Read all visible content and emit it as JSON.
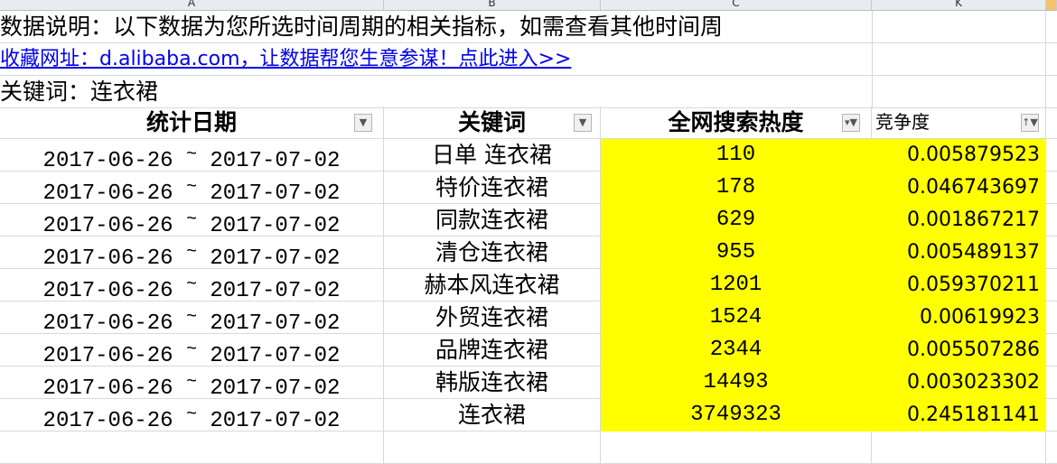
{
  "column_headers": [
    "A",
    "B",
    "C",
    "K"
  ],
  "info_text": "数据说明：以下数据为您所选时间周期的相关指标，如需查看其他时间周",
  "link_text": "收藏网址：d.alibaba.com，让数据帮您生意参谋！点此进入>>",
  "keyword_label": "关键词：连衣裙",
  "table": {
    "headers": [
      "统计日期",
      "关键词",
      "全网搜索热度",
      "竞争度"
    ],
    "header_icons": [
      "dropdown-arrow-icon",
      "dropdown-arrow-icon",
      "filter-active-icon",
      "sort-ascending-filter-icon"
    ],
    "highlight_color": "#ffff00",
    "rows": [
      {
        "start": "2017-06-26",
        "sep": "~",
        "end": "2017-07-02",
        "keyword": "日单 连衣裙",
        "heat": "110",
        "competition": "0.005879523"
      },
      {
        "start": "2017-06-26",
        "sep": "~",
        "end": "2017-07-02",
        "keyword": "特价连衣裙",
        "heat": "178",
        "competition": "0.046743697"
      },
      {
        "start": "2017-06-26",
        "sep": "~",
        "end": "2017-07-02",
        "keyword": "同款连衣裙",
        "heat": "629",
        "competition": "0.001867217"
      },
      {
        "start": "2017-06-26",
        "sep": "~",
        "end": "2017-07-02",
        "keyword": "清仓连衣裙",
        "heat": "955",
        "competition": "0.005489137"
      },
      {
        "start": "2017-06-26",
        "sep": "~",
        "end": "2017-07-02",
        "keyword": "赫本风连衣裙",
        "heat": "1201",
        "competition": "0.059370211"
      },
      {
        "start": "2017-06-26",
        "sep": "~",
        "end": "2017-07-02",
        "keyword": "外贸连衣裙",
        "heat": "1524",
        "competition": "0.00619923"
      },
      {
        "start": "2017-06-26",
        "sep": "~",
        "end": "2017-07-02",
        "keyword": "品牌连衣裙",
        "heat": "2344",
        "competition": "0.005507286"
      },
      {
        "start": "2017-06-26",
        "sep": "~",
        "end": "2017-07-02",
        "keyword": "韩版连衣裙",
        "heat": "14493",
        "competition": "0.003023302"
      },
      {
        "start": "2017-06-26",
        "sep": "~",
        "end": "2017-07-02",
        "keyword": "连衣裙",
        "heat": "3749323",
        "competition": "0.245181141"
      }
    ]
  }
}
